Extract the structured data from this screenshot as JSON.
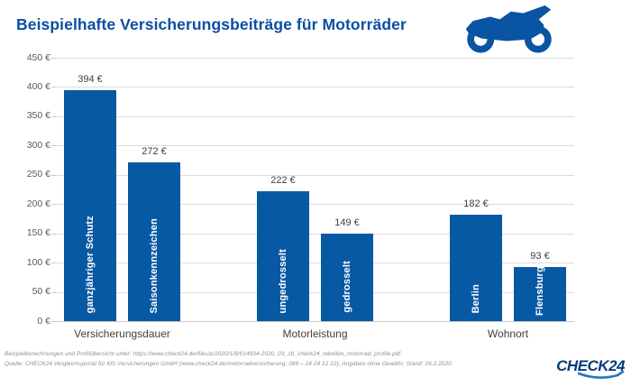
{
  "header": {
    "title": "Beispielhafte Versicherungsbeiträge für Motorräder"
  },
  "chart_data": {
    "type": "bar",
    "title": "Beispielhafte Versicherungsbeiträge für Motorräder",
    "xlabel": "",
    "ylabel": "",
    "ylim": [
      0,
      450
    ],
    "ytick_step": 50,
    "ytick_suffix": " €",
    "value_suffix": " €",
    "grid": true,
    "legend": "none",
    "bar_color": "#0859a4",
    "categories": [
      "Versicherungsdauer",
      "Motorleistung",
      "Wohnort"
    ],
    "groups": [
      {
        "label": "Versicherungsdauer",
        "bars": [
          {
            "label": "ganzjähriger Schutz",
            "value": 394,
            "value_label": "394 €"
          },
          {
            "label": "Saisonkennzeichen",
            "value": 272,
            "value_label": "272 €"
          }
        ]
      },
      {
        "label": "Motorleistung",
        "bars": [
          {
            "label": "ungedrosselt",
            "value": 222,
            "value_label": "222 €"
          },
          {
            "label": "gedrosselt",
            "value": 149,
            "value_label": "149 €"
          }
        ]
      },
      {
        "label": "Wohnort",
        "bars": [
          {
            "label": "Berlin",
            "value": 182,
            "value_label": "182 €"
          },
          {
            "label": "Flensburg",
            "value": 93,
            "value_label": "93 €"
          }
        ]
      }
    ],
    "yticks": [
      "0 €",
      "50 €",
      "100 €",
      "150 €",
      "200 €",
      "250 €",
      "300 €",
      "350 €",
      "400 €",
      "450 €"
    ]
  },
  "icons": {
    "motorcycle": "motorcycle-icon",
    "logo_swoosh": "swoosh-icon"
  },
  "footer": {
    "line1": "Beispielberechnungen und Profilübersicht unter: https://www.check24.de/files/p/2020/1/8/f/14934-2020_03_16_check24_tabellen_motorrad_profile.pdf",
    "line2": "Quelle: CHECK24 Vergleichsportal für Kfz-Versicherungen GmbH (www.check24.de/motorradversicherung; 089 – 24 24 12 22); Angaben ohne Gewähr; Stand: 26.2.2020",
    "logo_text": "CHECK24"
  },
  "colors": {
    "title_blue": "#0a4fa3",
    "bar_blue": "#0859a4",
    "logo_navy": "#053b7a",
    "logo_swoosh_blue": "#2079c3",
    "gridline_gray": "#dcdcdc",
    "axis_text_gray": "#595959",
    "label_gray": "#404040",
    "footer_gray": "#8f8f8f"
  }
}
